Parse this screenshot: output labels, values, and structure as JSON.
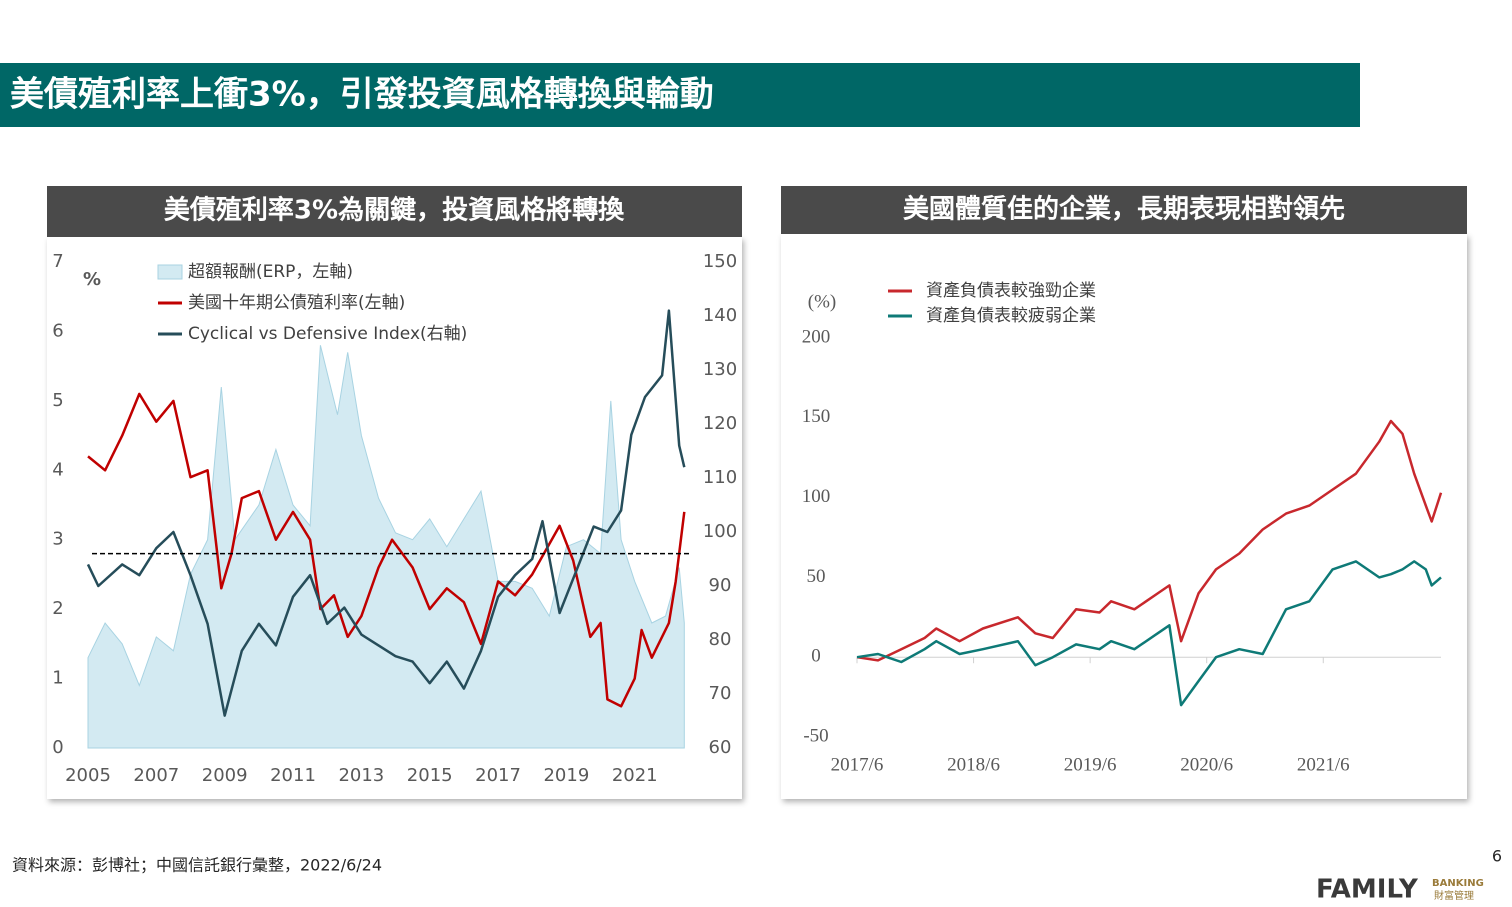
{
  "header": {
    "title": "美債殖利率上衝3%，引發投資風格轉換與輪動"
  },
  "chart_data": [
    {
      "type": "line",
      "title": "美債殖利率3%為關鍵，投資風格將轉換",
      "ylabel": "%",
      "xlim": [
        2005,
        2022.5
      ],
      "xticks": [
        2005,
        2007,
        2009,
        2011,
        2013,
        2015,
        2017,
        2019,
        2021
      ],
      "ylim": [
        0,
        7
      ],
      "yticks": [
        0,
        1,
        2,
        3,
        4,
        5,
        6,
        7
      ],
      "y2lim": [
        60,
        150
      ],
      "y2ticks": [
        60,
        70,
        80,
        90,
        100,
        110,
        120,
        130,
        140,
        150
      ],
      "hline": 2.8,
      "series": [
        {
          "name": "超額報酬(ERP，左軸)",
          "style": "area",
          "color": "#d3eaf2",
          "x": [
            2005,
            2005.5,
            2006,
            2006.5,
            2007,
            2007.5,
            2008,
            2008.5,
            2008.9,
            2009.3,
            2010,
            2010.5,
            2011,
            2011.5,
            2011.8,
            2012.3,
            2012.6,
            2013,
            2013.5,
            2014,
            2014.5,
            2015,
            2015.5,
            2016,
            2016.5,
            2017,
            2017.5,
            2018,
            2018.5,
            2019,
            2019.5,
            2020,
            2020.3,
            2020.6,
            2021,
            2021.5,
            2021.9,
            2022.3,
            2022.45
          ],
          "values": [
            1.3,
            1.8,
            1.5,
            0.9,
            1.6,
            1.4,
            2.5,
            3.0,
            5.2,
            3.0,
            3.5,
            4.3,
            3.5,
            3.2,
            5.8,
            4.8,
            5.7,
            4.5,
            3.6,
            3.1,
            3.0,
            3.3,
            2.9,
            3.3,
            3.7,
            2.4,
            2.4,
            2.3,
            1.9,
            2.9,
            3.0,
            2.8,
            5.0,
            3.0,
            2.4,
            1.8,
            1.9,
            2.6,
            1.8
          ]
        },
        {
          "name": "美國十年期公債殖利率(左軸)",
          "style": "line",
          "color": "#c00000",
          "x": [
            2005,
            2005.5,
            2006,
            2006.5,
            2007,
            2007.5,
            2008,
            2008.5,
            2008.9,
            2009.2,
            2009.5,
            2010,
            2010.5,
            2011,
            2011.5,
            2011.8,
            2012.2,
            2012.6,
            2013,
            2013.5,
            2013.9,
            2014.5,
            2015,
            2015.5,
            2016,
            2016.5,
            2017,
            2017.5,
            2018,
            2018.8,
            2019.2,
            2019.7,
            2020,
            2020.2,
            2020.6,
            2021,
            2021.2,
            2021.5,
            2022,
            2022.2,
            2022.45
          ],
          "values": [
            4.2,
            4.0,
            4.5,
            5.1,
            4.7,
            5.0,
            3.9,
            4.0,
            2.3,
            2.8,
            3.6,
            3.7,
            3.0,
            3.4,
            3.0,
            2.0,
            2.2,
            1.6,
            1.9,
            2.6,
            3.0,
            2.6,
            2.0,
            2.3,
            2.1,
            1.5,
            2.4,
            2.2,
            2.5,
            3.2,
            2.7,
            1.6,
            1.8,
            0.7,
            0.6,
            1.0,
            1.7,
            1.3,
            1.8,
            2.4,
            3.4
          ]
        },
        {
          "name": "Cyclical vs Defensive Index(右軸)",
          "style": "line",
          "axis": "y2",
          "color": "#264d5a",
          "x": [
            2005,
            2005.3,
            2006,
            2006.5,
            2007,
            2007.5,
            2008,
            2008.5,
            2009,
            2009.5,
            2010,
            2010.5,
            2011,
            2011.5,
            2012,
            2012.5,
            2013,
            2013.5,
            2014,
            2014.5,
            2015,
            2015.5,
            2016,
            2016.5,
            2017,
            2017.5,
            2018,
            2018.3,
            2018.8,
            2019.3,
            2019.8,
            2020.2,
            2020.6,
            2020.9,
            2021.3,
            2021.8,
            2022.0,
            2022.3,
            2022.45
          ],
          "values": [
            94,
            90,
            94,
            92,
            97,
            100,
            92,
            83,
            66,
            78,
            83,
            79,
            88,
            92,
            83,
            86,
            81,
            79,
            77,
            76,
            72,
            76,
            71,
            78,
            88,
            92,
            95,
            102,
            85,
            93,
            101,
            100,
            104,
            118,
            125,
            129,
            141,
            116,
            112
          ]
        }
      ]
    },
    {
      "type": "line",
      "title": "美國體質佳的企業，長期表現相對領先",
      "ylabel": "(%)",
      "xlim": [
        2017.42,
        2022.43
      ],
      "xticks": [
        {
          "value": 2017.42,
          "label": "2017/6"
        },
        {
          "value": 2018.42,
          "label": "2018/6"
        },
        {
          "value": 2019.42,
          "label": "2019/6"
        },
        {
          "value": 2020.42,
          "label": "2020/6"
        },
        {
          "value": 2021.42,
          "label": "2021/6"
        }
      ],
      "ylim": [
        -50,
        200
      ],
      "yticks": [
        -50,
        0,
        50,
        100,
        150,
        200
      ],
      "x": [
        2017.42,
        2017.6,
        2017.8,
        2018.0,
        2018.1,
        2018.3,
        2018.5,
        2018.8,
        2018.95,
        2019.1,
        2019.3,
        2019.5,
        2019.6,
        2019.8,
        2020.0,
        2020.1,
        2020.2,
        2020.35,
        2020.5,
        2020.7,
        2020.9,
        2021.1,
        2021.3,
        2021.5,
        2021.7,
        2021.9,
        2022.0,
        2022.1,
        2022.2,
        2022.3,
        2022.35,
        2022.43
      ],
      "series": [
        {
          "name": "資產負債表較強勁企業",
          "color": "#c8282d",
          "values": [
            0,
            -2,
            5,
            12,
            18,
            10,
            18,
            25,
            15,
            12,
            30,
            28,
            35,
            30,
            40,
            45,
            10,
            40,
            55,
            65,
            80,
            90,
            95,
            105,
            115,
            135,
            148,
            140,
            115,
            95,
            85,
            103
          ]
        },
        {
          "name": "資產負債表較疲弱企業",
          "color": "#0e7a77",
          "values": [
            0,
            2,
            -3,
            5,
            10,
            2,
            5,
            10,
            -5,
            0,
            8,
            5,
            10,
            5,
            15,
            20,
            -30,
            -15,
            0,
            5,
            2,
            30,
            35,
            55,
            60,
            50,
            52,
            55,
            60,
            55,
            45,
            50
          ]
        }
      ]
    }
  ],
  "footer": {
    "source": "資料來源：彭博社；中國信託銀行彙整，2022/6/24",
    "page": "6",
    "logo": "FAMILY",
    "logo_sub": "BANKING",
    "logo_cn": "財富管理"
  }
}
